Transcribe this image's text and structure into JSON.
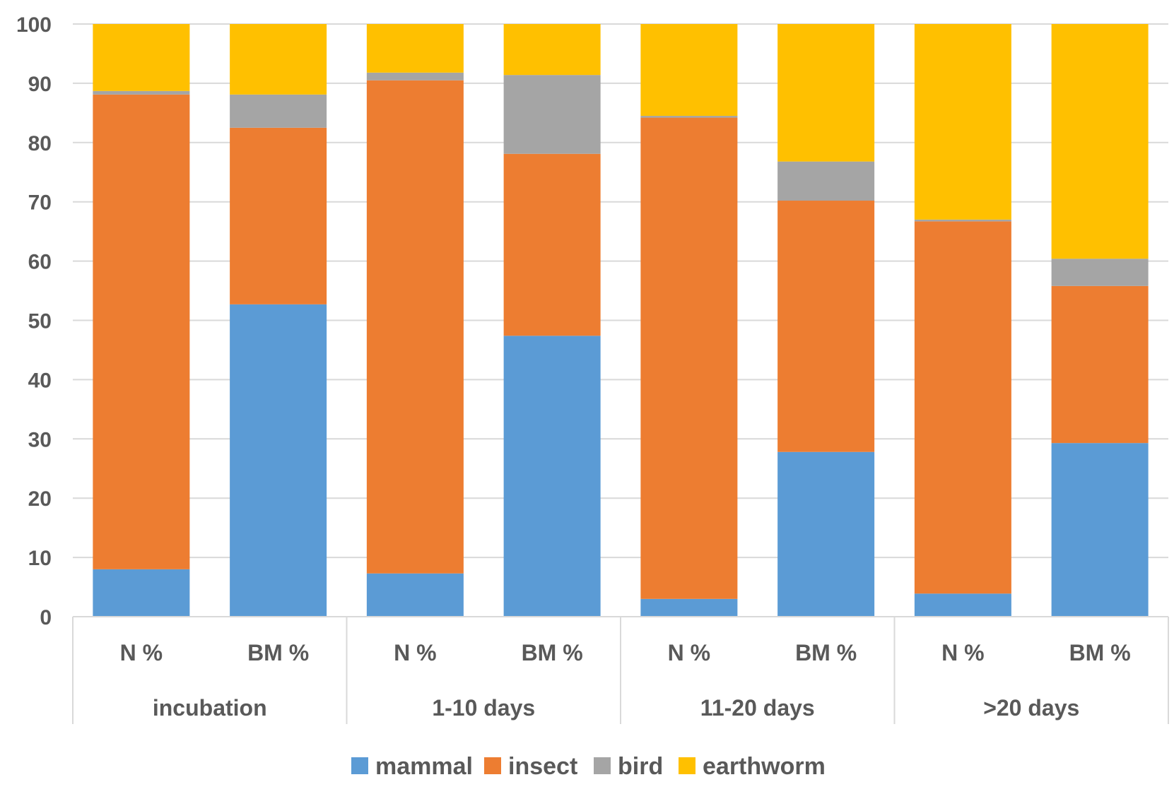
{
  "chart_data": {
    "type": "bar",
    "stacked": true,
    "groups": [
      "incubation",
      "1-10 days",
      "11-20 days",
      ">20 days"
    ],
    "sub_categories": [
      "N %",
      "BM %"
    ],
    "categories": [
      "incubation N %",
      "incubation BM %",
      "1-10 days N %",
      "1-10 days BM %",
      "11-20 days N %",
      "11-20 days BM %",
      ">20 days N %",
      ">20 days BM %"
    ],
    "series": [
      {
        "name": "mammal",
        "color": "#5B9BD5",
        "values": [
          8,
          52.7,
          7.3,
          47.4,
          3,
          27.8,
          3.9,
          29.3
        ]
      },
      {
        "name": "insect",
        "color": "#ED7D31",
        "values": [
          80.1,
          29.8,
          83.2,
          30.7,
          81.2,
          42.4,
          62.8,
          26.5
        ]
      },
      {
        "name": "bird",
        "color": "#A5A5A5",
        "values": [
          0.6,
          5.6,
          1.3,
          13.3,
          0.3,
          6.6,
          0.3,
          4.6
        ]
      },
      {
        "name": "earthworm",
        "color": "#FFC000",
        "values": [
          11.3,
          11.9,
          8.2,
          8.6,
          15.5,
          23.2,
          33,
          39.6
        ]
      }
    ],
    "y_ticks": [
      "0",
      "10",
      "20",
      "30",
      "40",
      "50",
      "60",
      "70",
      "80",
      "90",
      "100"
    ],
    "ylim": [
      0,
      100
    ],
    "grid": true,
    "legend_position": "bottom",
    "title": "",
    "xlabel": "",
    "ylabel": ""
  }
}
